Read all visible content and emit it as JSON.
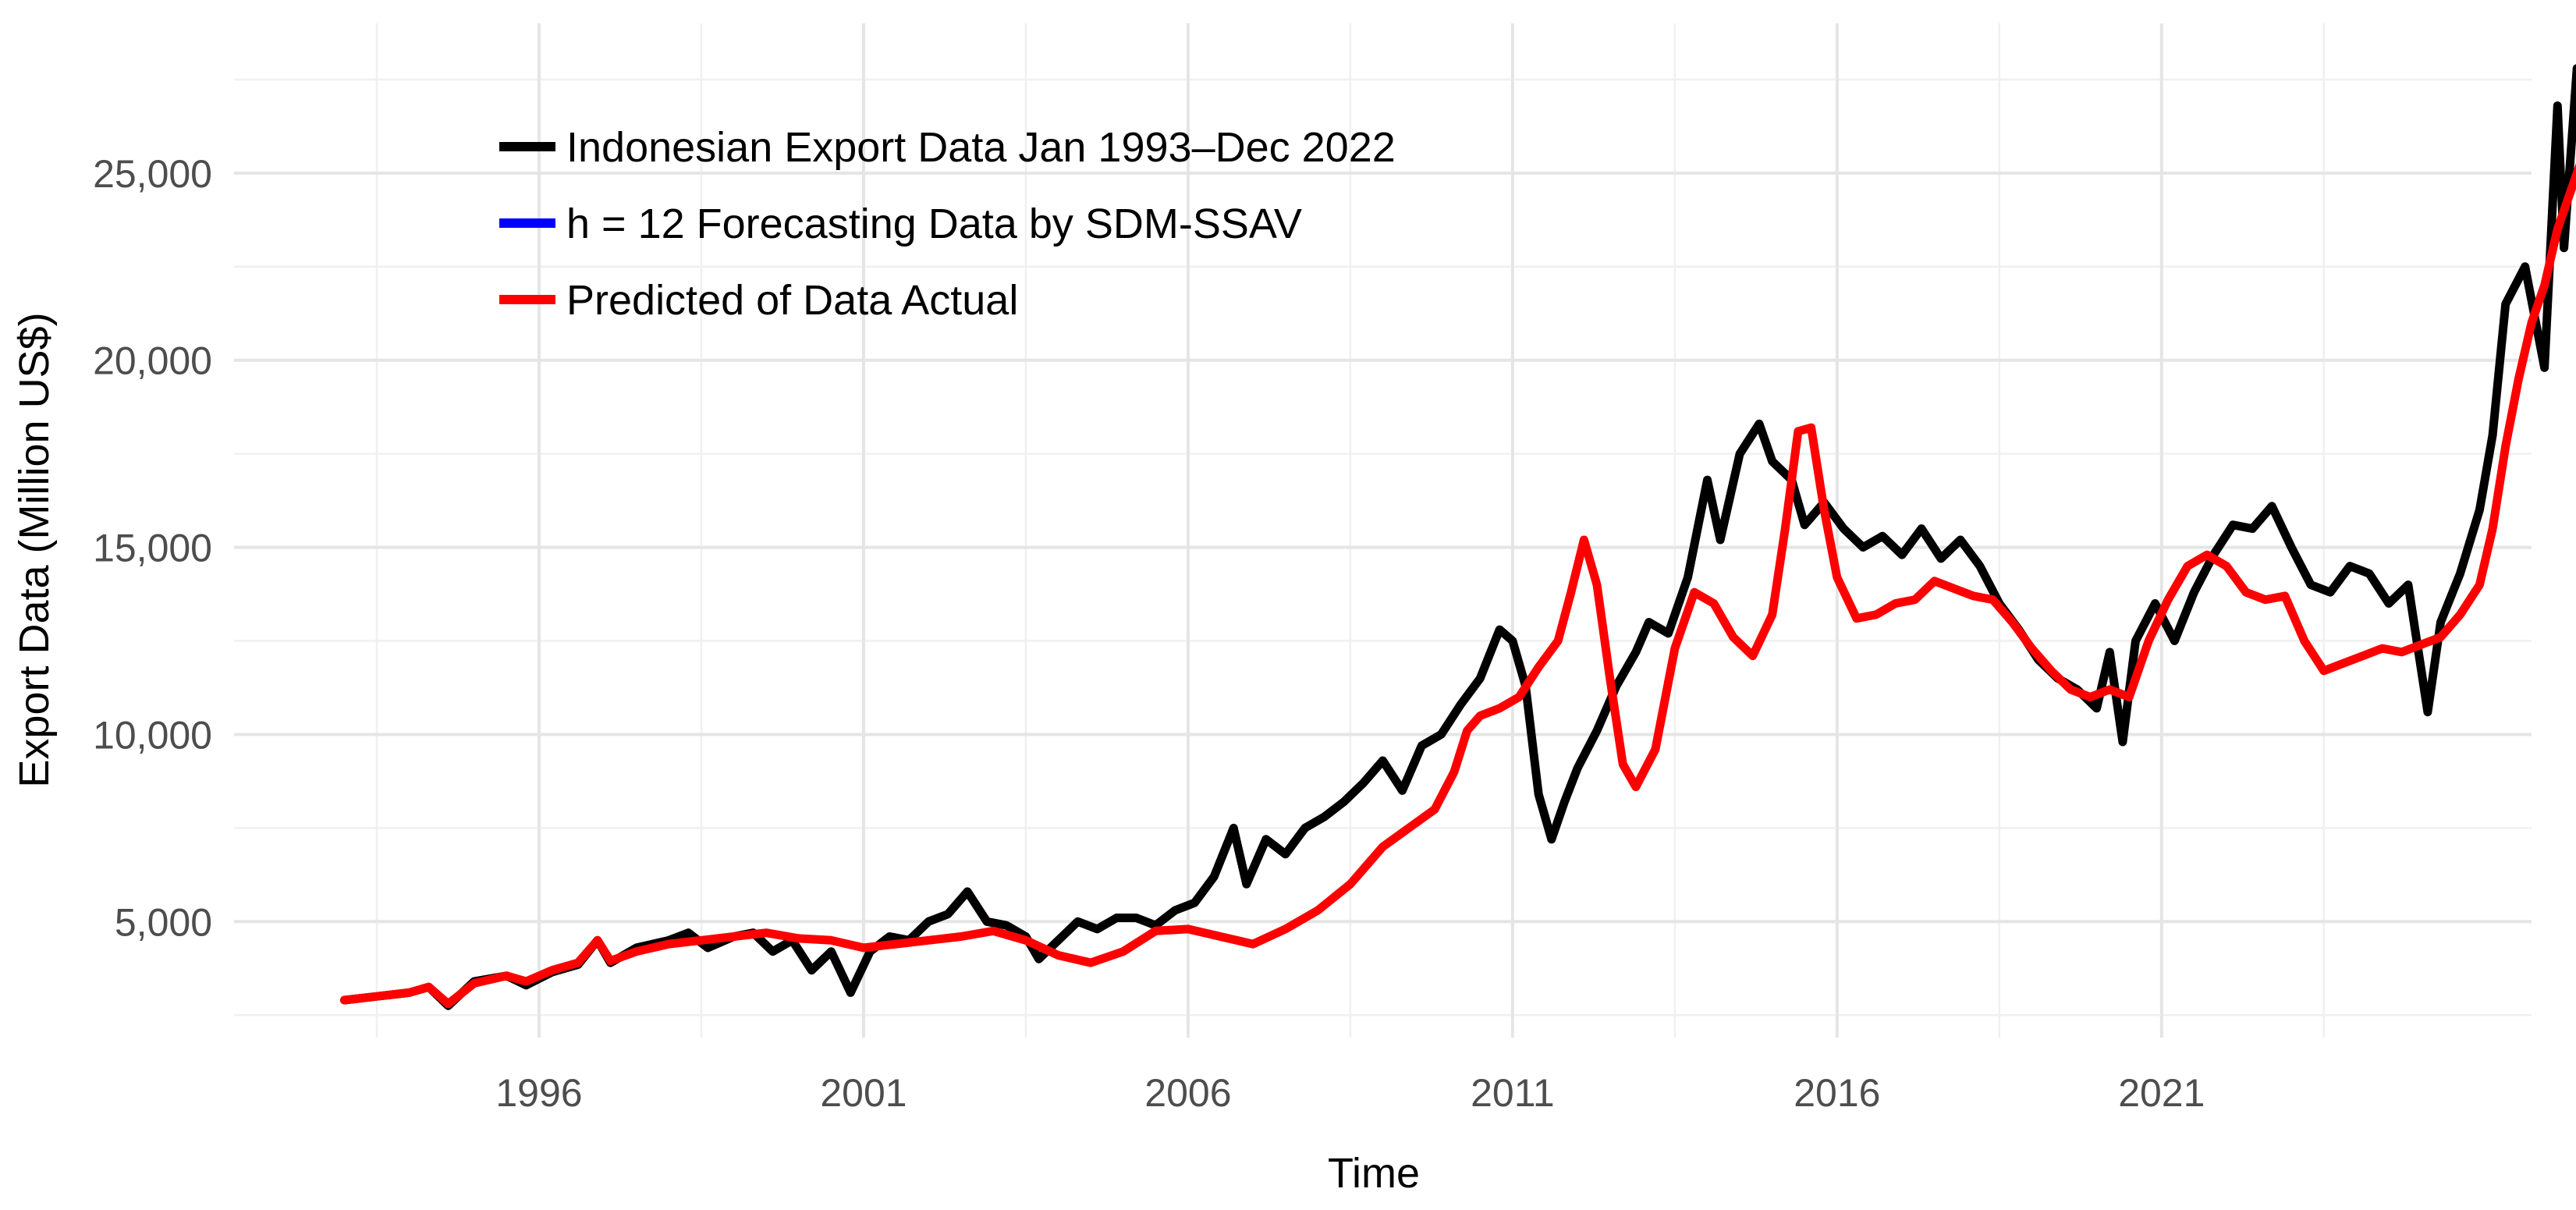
{
  "chart_data": {
    "type": "line",
    "title": "",
    "xlabel": "Time",
    "ylabel": "Export Data (Million US$)",
    "xlim": [
      1991.3,
      2026.7
    ],
    "ylim": [
      1900,
      29000
    ],
    "x_ticks": [
      1996,
      2001,
      2006,
      2011,
      2016,
      2021
    ],
    "y_ticks": [
      5000,
      10000,
      15000,
      20000,
      25000
    ],
    "y_tick_labels": [
      "5,000",
      "10,000",
      "15,000",
      "20,000",
      "25,000"
    ],
    "grid": true,
    "legend_position": "top-left",
    "series": [
      {
        "name": "Indonesian Export Data Jan 1993–Dec 2022",
        "color": "#000000",
        "points": [
          [
            1993.0,
            2900
          ],
          [
            1993.5,
            3000
          ],
          [
            1994.0,
            3100
          ],
          [
            1994.3,
            3250
          ],
          [
            1994.6,
            2750
          ],
          [
            1995.0,
            3400
          ],
          [
            1995.5,
            3550
          ],
          [
            1995.8,
            3300
          ],
          [
            1996.2,
            3650
          ],
          [
            1996.6,
            3850
          ],
          [
            1996.9,
            4500
          ],
          [
            1997.1,
            3900
          ],
          [
            1997.5,
            4300
          ],
          [
            1998.0,
            4500
          ],
          [
            1998.3,
            4700
          ],
          [
            1998.6,
            4300
          ],
          [
            1999.0,
            4600
          ],
          [
            1999.3,
            4700
          ],
          [
            1999.6,
            4200
          ],
          [
            1999.9,
            4500
          ],
          [
            2000.2,
            3700
          ],
          [
            2000.5,
            4200
          ],
          [
            2000.8,
            3100
          ],
          [
            2001.1,
            4200
          ],
          [
            2001.4,
            4600
          ],
          [
            2001.7,
            4500
          ],
          [
            2002.0,
            5000
          ],
          [
            2002.3,
            5200
          ],
          [
            2002.6,
            5800
          ],
          [
            2002.9,
            5000
          ],
          [
            2003.2,
            4900
          ],
          [
            2003.5,
            4600
          ],
          [
            2003.7,
            4000
          ],
          [
            2004.0,
            4500
          ],
          [
            2004.3,
            5000
          ],
          [
            2004.6,
            4800
          ],
          [
            2004.9,
            5100
          ],
          [
            2005.2,
            5100
          ],
          [
            2005.5,
            4900
          ],
          [
            2005.8,
            5300
          ],
          [
            2006.1,
            5500
          ],
          [
            2006.4,
            6200
          ],
          [
            2006.7,
            7500
          ],
          [
            2006.9,
            6000
          ],
          [
            2007.2,
            7200
          ],
          [
            2007.5,
            6800
          ],
          [
            2007.8,
            7500
          ],
          [
            2008.1,
            7800
          ],
          [
            2008.4,
            8200
          ],
          [
            2008.7,
            8700
          ],
          [
            2009.0,
            9300
          ],
          [
            2009.3,
            8500
          ],
          [
            2009.6,
            9700
          ],
          [
            2009.9,
            10000
          ],
          [
            2010.2,
            10800
          ],
          [
            2010.5,
            11500
          ],
          [
            2010.8,
            12800
          ],
          [
            2011.0,
            12500
          ],
          [
            2011.2,
            11300
          ],
          [
            2011.4,
            8400
          ],
          [
            2011.6,
            7200
          ],
          [
            2011.8,
            8200
          ],
          [
            2012.0,
            9100
          ],
          [
            2012.3,
            10100
          ],
          [
            2012.6,
            11300
          ],
          [
            2012.9,
            12200
          ],
          [
            2013.1,
            13000
          ],
          [
            2013.4,
            12700
          ],
          [
            2013.7,
            14200
          ],
          [
            2014.0,
            16800
          ],
          [
            2014.2,
            15200
          ],
          [
            2014.5,
            17500
          ],
          [
            2014.8,
            18300
          ],
          [
            2015.0,
            17300
          ],
          [
            2015.3,
            16800
          ],
          [
            2015.5,
            15600
          ],
          [
            2015.8,
            16200
          ],
          [
            2016.1,
            15500
          ],
          [
            2016.4,
            15000
          ],
          [
            2016.7,
            15300
          ],
          [
            2017.0,
            14800
          ],
          [
            2017.3,
            15500
          ],
          [
            2017.6,
            14700
          ],
          [
            2017.9,
            15200
          ],
          [
            2018.2,
            14500
          ],
          [
            2018.5,
            13500
          ],
          [
            2018.8,
            12800
          ],
          [
            2019.1,
            12000
          ],
          [
            2019.4,
            11500
          ],
          [
            2019.7,
            11200
          ],
          [
            2020.0,
            10700
          ],
          [
            2020.2,
            12200
          ],
          [
            2020.4,
            9800
          ],
          [
            2020.6,
            12500
          ],
          [
            2020.9,
            13500
          ],
          [
            2021.2,
            12500
          ],
          [
            2021.5,
            13800
          ],
          [
            2021.8,
            14800
          ],
          [
            2022.1,
            15600
          ],
          [
            2022.4,
            15500
          ],
          [
            2022.7,
            16100
          ],
          [
            2023.0,
            15000
          ],
          [
            2023.3,
            14000
          ],
          [
            2023.6,
            13800
          ],
          [
            2023.9,
            14500
          ],
          [
            2024.2,
            14300
          ],
          [
            2024.5,
            13500
          ],
          [
            2024.8,
            14000
          ],
          [
            2025.1,
            10600
          ],
          [
            2025.3,
            13000
          ],
          [
            2025.6,
            14300
          ],
          [
            2025.9,
            16000
          ],
          [
            2026.1,
            18000
          ],
          [
            2026.3,
            21500
          ],
          [
            2026.6,
            22500
          ],
          [
            2026.9,
            19800
          ],
          [
            2027.1,
            26800
          ],
          [
            2027.2,
            23000
          ],
          [
            2027.4,
            27800
          ],
          [
            2027.6,
            24200
          ],
          [
            2027.8,
            21800
          ]
        ]
      },
      {
        "name": "h = 12 Forecasting Data by SDM-SSAV",
        "color": "#0000ff",
        "points": [
          [
            2027.8,
            21800
          ],
          [
            2028.0,
            21100
          ],
          [
            2028.2,
            23300
          ],
          [
            2028.4,
            22900
          ],
          [
            2028.6,
            24200
          ],
          [
            2028.8,
            25500
          ],
          [
            2029.0,
            25300
          ],
          [
            2029.2,
            24600
          ]
        ]
      },
      {
        "name": "Predicted of Data Actual",
        "color": "#ff0000",
        "points": [
          [
            1993.0,
            2900
          ],
          [
            1993.5,
            3000
          ],
          [
            1994.0,
            3100
          ],
          [
            1994.3,
            3250
          ],
          [
            1994.6,
            2800
          ],
          [
            1995.0,
            3350
          ],
          [
            1995.5,
            3550
          ],
          [
            1995.8,
            3400
          ],
          [
            1996.2,
            3700
          ],
          [
            1996.6,
            3900
          ],
          [
            1996.9,
            4500
          ],
          [
            1997.1,
            3950
          ],
          [
            1997.5,
            4200
          ],
          [
            1998.0,
            4400
          ],
          [
            1998.5,
            4500
          ],
          [
            1999.0,
            4600
          ],
          [
            1999.5,
            4700
          ],
          [
            2000.0,
            4550
          ],
          [
            2000.5,
            4500
          ],
          [
            2001.0,
            4300
          ],
          [
            2001.5,
            4400
          ],
          [
            2002.0,
            4500
          ],
          [
            2002.5,
            4600
          ],
          [
            2003.0,
            4750
          ],
          [
            2003.5,
            4500
          ],
          [
            2004.0,
            4100
          ],
          [
            2004.5,
            3900
          ],
          [
            2005.0,
            4200
          ],
          [
            2005.5,
            4750
          ],
          [
            2006.0,
            4800
          ],
          [
            2006.5,
            4600
          ],
          [
            2007.0,
            4400
          ],
          [
            2007.5,
            4800
          ],
          [
            2008.0,
            5300
          ],
          [
            2008.5,
            6000
          ],
          [
            2009.0,
            7000
          ],
          [
            2009.4,
            7500
          ],
          [
            2009.8,
            8000
          ],
          [
            2010.1,
            9000
          ],
          [
            2010.3,
            10100
          ],
          [
            2010.5,
            10500
          ],
          [
            2010.8,
            10700
          ],
          [
            2011.1,
            11000
          ],
          [
            2011.4,
            11800
          ],
          [
            2011.7,
            12500
          ],
          [
            2011.9,
            13800
          ],
          [
            2012.1,
            15200
          ],
          [
            2012.3,
            14000
          ],
          [
            2012.5,
            11500
          ],
          [
            2012.7,
            9200
          ],
          [
            2012.9,
            8600
          ],
          [
            2013.2,
            9600
          ],
          [
            2013.5,
            12300
          ],
          [
            2013.8,
            13800
          ],
          [
            2014.1,
            13500
          ],
          [
            2014.4,
            12600
          ],
          [
            2014.7,
            12100
          ],
          [
            2015.0,
            13200
          ],
          [
            2015.2,
            15500
          ],
          [
            2015.4,
            18100
          ],
          [
            2015.6,
            18200
          ],
          [
            2015.8,
            16000
          ],
          [
            2016.0,
            14200
          ],
          [
            2016.3,
            13100
          ],
          [
            2016.6,
            13200
          ],
          [
            2016.9,
            13500
          ],
          [
            2017.2,
            13600
          ],
          [
            2017.5,
            14100
          ],
          [
            2017.8,
            13900
          ],
          [
            2018.1,
            13700
          ],
          [
            2018.4,
            13600
          ],
          [
            2018.7,
            13000
          ],
          [
            2019.0,
            12300
          ],
          [
            2019.3,
            11700
          ],
          [
            2019.6,
            11200
          ],
          [
            2019.9,
            11000
          ],
          [
            2020.2,
            11200
          ],
          [
            2020.5,
            11000
          ],
          [
            2020.8,
            12500
          ],
          [
            2021.1,
            13600
          ],
          [
            2021.4,
            14500
          ],
          [
            2021.7,
            14800
          ],
          [
            2022.0,
            14500
          ],
          [
            2022.3,
            13800
          ],
          [
            2022.6,
            13600
          ],
          [
            2022.9,
            13700
          ],
          [
            2023.2,
            12500
          ],
          [
            2023.5,
            11700
          ],
          [
            2023.8,
            11900
          ],
          [
            2024.1,
            12100
          ],
          [
            2024.4,
            12300
          ],
          [
            2024.7,
            12200
          ],
          [
            2025.0,
            12400
          ],
          [
            2025.3,
            12600
          ],
          [
            2025.6,
            13200
          ],
          [
            2025.9,
            14000
          ],
          [
            2026.1,
            15500
          ],
          [
            2026.3,
            17700
          ],
          [
            2026.5,
            19500
          ],
          [
            2026.7,
            21000
          ],
          [
            2026.9,
            22000
          ],
          [
            2027.1,
            23500
          ],
          [
            2027.3,
            24500
          ],
          [
            2027.5,
            25500
          ],
          [
            2027.7,
            25000
          ],
          [
            2027.9,
            24500
          ]
        ]
      }
    ]
  }
}
